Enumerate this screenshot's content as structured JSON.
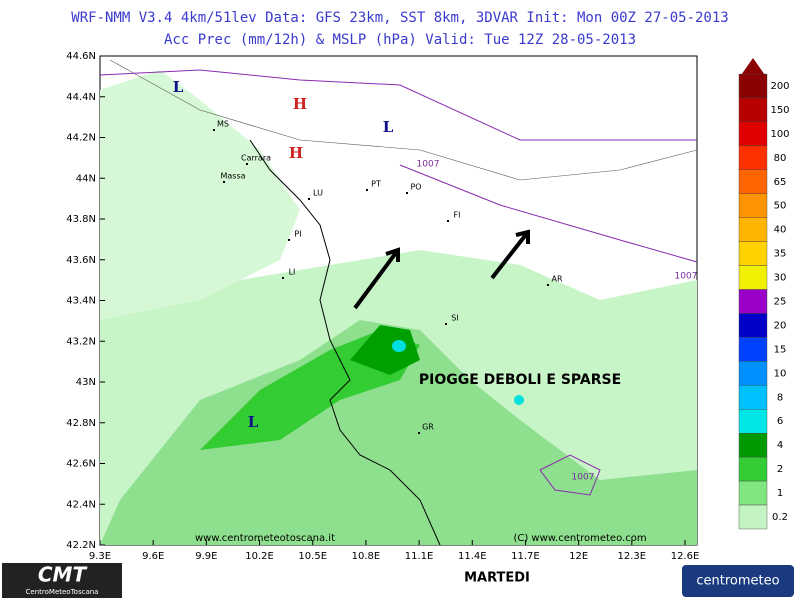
{
  "header": {
    "line1": "WRF-NMM V3.4 4km/51lev  Data: GFS 23km, SST 8km, 3DVAR  Init: Mon 00Z 27-05-2013",
    "line2": "Acc Prec (mm/12h) & MSLP (hPa)  Valid: Tue 12Z 28-05-2013"
  },
  "map": {
    "lat_labels": [
      "44.6N",
      "44.4N",
      "44.2N",
      "44N",
      "43.8N",
      "43.6N",
      "43.4N",
      "43.2N",
      "43N",
      "42.8N",
      "42.6N",
      "42.4N",
      "42.2N"
    ],
    "lon_labels": [
      "9.3E",
      "9.6E",
      "9.9E",
      "10.2E",
      "10.5E",
      "10.8E",
      "11.1E",
      "11.4E",
      "11.7E",
      "12E",
      "12.3E",
      "12.6E"
    ],
    "places": [
      "MS",
      "Carrara",
      "Massa",
      "LU",
      "PT",
      "PO",
      "FI",
      "PI",
      "LI",
      "AR",
      "SI",
      "GR"
    ],
    "pressure_centers": [
      "H",
      "H",
      "L",
      "L",
      "L"
    ],
    "isobar_labels": [
      "1007",
      "1007",
      "1007"
    ]
  },
  "legend": [
    {
      "label": "200",
      "color": "#8b0000"
    },
    {
      "label": "150",
      "color": "#b80000"
    },
    {
      "label": "100",
      "color": "#e00000"
    },
    {
      "label": "80",
      "color": "#ff3000"
    },
    {
      "label": "65",
      "color": "#ff6400"
    },
    {
      "label": "50",
      "color": "#ff9400"
    },
    {
      "label": "40",
      "color": "#ffb400"
    },
    {
      "label": "35",
      "color": "#ffd200"
    },
    {
      "label": "30",
      "color": "#f0f000"
    },
    {
      "label": "25",
      "color": "#9a00c8"
    },
    {
      "label": "20",
      "color": "#0000c8"
    },
    {
      "label": "15",
      "color": "#0040ff"
    },
    {
      "label": "10",
      "color": "#0090ff"
    },
    {
      "label": "8",
      "color": "#00c0ff"
    },
    {
      "label": "6",
      "color": "#00e6e6"
    },
    {
      "label": "4",
      "color": "#009a00"
    },
    {
      "label": "2",
      "color": "#33cc33"
    },
    {
      "label": "1",
      "color": "#80e680"
    },
    {
      "label": "0.2",
      "color": "#c4f4c4"
    }
  ],
  "annotation": "PIOGGE DEBOLI E SPARSE",
  "footer": {
    "credit_left": "www.centrometeotoscana.it",
    "credit_right": "(C) www.centrometeo.com",
    "day": "MARTEDI",
    "logo_left": "CMT",
    "logo_left_sub": "CentroMeteoToscana",
    "logo_right": "centrometeo"
  }
}
